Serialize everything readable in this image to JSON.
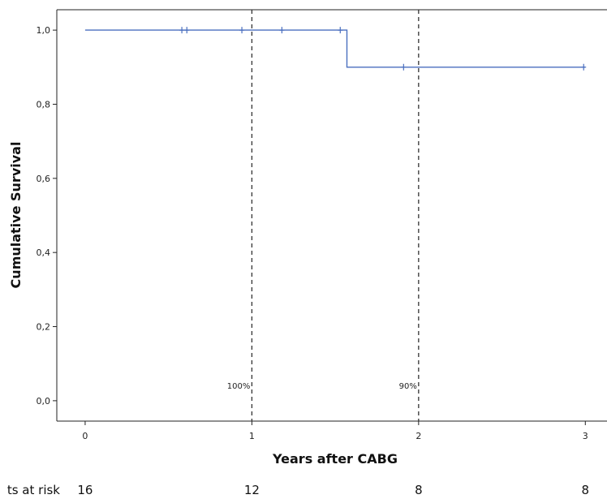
{
  "chart_data": {
    "type": "line",
    "title": "",
    "xlabel": "Years after CABG",
    "ylabel": "Cumulative Survival",
    "xlim": [
      -0.17,
      3.13
    ],
    "ylim": [
      -0.055,
      1.055
    ],
    "x_ticks": [
      0,
      1,
      2,
      3
    ],
    "x_tick_labels": [
      "0",
      "1",
      "2",
      "3"
    ],
    "y_ticks": [
      0.0,
      0.2,
      0.4,
      0.6,
      0.8,
      1.0
    ],
    "y_tick_labels": [
      "0,0",
      "0,2",
      "0,4",
      "0,6",
      "0,8",
      "1,0"
    ],
    "grid": false,
    "series": [
      {
        "color": "#4a6fbf",
        "step_points": [
          [
            0,
            1.0
          ],
          [
            1.57,
            1.0
          ],
          [
            1.57,
            0.9
          ],
          [
            3.0,
            0.9
          ]
        ],
        "censored": [
          [
            0.58,
            1.0
          ],
          [
            0.61,
            1.0
          ],
          [
            0.94,
            1.0
          ],
          [
            1.18,
            1.0
          ],
          [
            1.53,
            1.0
          ],
          [
            1.91,
            0.9
          ],
          [
            2.99,
            0.9
          ]
        ]
      }
    ],
    "reference_lines": [
      {
        "x": 1,
        "label": "100%"
      },
      {
        "x": 2,
        "label": "90%"
      }
    ],
    "at_risk": {
      "label": "ts at risk",
      "values": [
        {
          "x": 0,
          "value": "16"
        },
        {
          "x": 1,
          "value": "12"
        },
        {
          "x": 2,
          "value": "8"
        },
        {
          "x": 3,
          "value": "8"
        }
      ]
    }
  }
}
